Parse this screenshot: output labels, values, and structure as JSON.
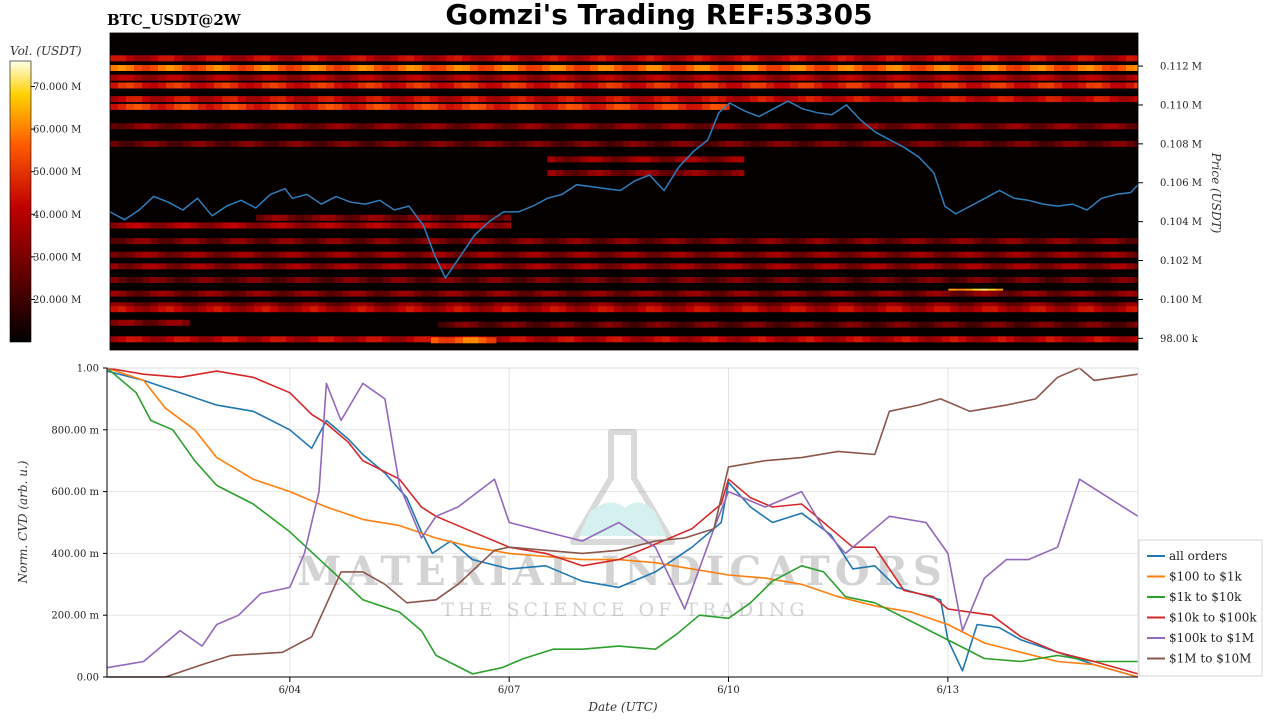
{
  "header": {
    "title": "Gomzi's Trading REF:53305",
    "pair": "BTC_USDT@2W"
  },
  "watermark": {
    "brand": "MATERIAL INDICATORS",
    "tagline": "THE SCIENCE OF TRADING"
  },
  "chart_data": [
    {
      "type": "heatmap",
      "subtype": "order-book liquidity heatmap with price line",
      "title": "",
      "colorbar": {
        "label": "Vol. (USDT)",
        "ticks": [
          "70.000 M",
          "60.000 M",
          "50.000 M",
          "40.000 M",
          "30.000 M",
          "20.000 M"
        ],
        "tick_values": [
          70,
          60,
          50,
          40,
          30,
          20
        ],
        "range": [
          10,
          76
        ],
        "unit": "M USDT",
        "colors": [
          "#000000",
          "#5a0000",
          "#c00000",
          "#ff5a00",
          "#ffd000",
          "#ffffe8"
        ]
      },
      "ylabel": "Price (USDT)",
      "yticks": [
        "0.112 M",
        "0.110 M",
        "0.108 M",
        "0.106 M",
        "0.104 M",
        "0.102 M",
        "0.100 M",
        "98.00 k"
      ],
      "ytick_values": [
        112000,
        110000,
        108000,
        106000,
        104000,
        102000,
        100000,
        98000
      ],
      "ylim": [
        97400,
        113700
      ],
      "x_days": [
        1.5,
        15.6
      ],
      "price_series_color": "#2f7ebc",
      "price": {
        "x": [
          1.5,
          1.7,
          1.9,
          2.1,
          2.3,
          2.5,
          2.7,
          2.9,
          3.1,
          3.3,
          3.5,
          3.7,
          3.9,
          4.0,
          4.2,
          4.4,
          4.6,
          4.8,
          5.0,
          5.2,
          5.4,
          5.6,
          5.8,
          5.95,
          6.1,
          6.3,
          6.5,
          6.7,
          6.9,
          7.1,
          7.3,
          7.5,
          7.7,
          7.9,
          8.1,
          8.3,
          8.5,
          8.7,
          8.9,
          9.1,
          9.3,
          9.5,
          9.7,
          9.85,
          10.0,
          10.2,
          10.4,
          10.6,
          10.8,
          11.0,
          11.2,
          11.4,
          11.6,
          11.8,
          12.0,
          12.2,
          12.4,
          12.6,
          12.8,
          12.95,
          13.1,
          13.3,
          13.5,
          13.7,
          13.9,
          14.1,
          14.3,
          14.5,
          14.7,
          14.9,
          15.1,
          15.3,
          15.5,
          15.6
        ],
        "y": [
          104500,
          104100,
          104600,
          105300,
          105000,
          104600,
          105200,
          104300,
          104800,
          105100,
          104700,
          105400,
          105700,
          105200,
          105400,
          104900,
          105300,
          105000,
          104900,
          105100,
          104600,
          104800,
          103800,
          102300,
          101100,
          102200,
          103300,
          104000,
          104500,
          104500,
          104800,
          105200,
          105400,
          105900,
          105800,
          105700,
          105600,
          106100,
          106400,
          105600,
          106800,
          107600,
          108200,
          109600,
          110100,
          109700,
          109400,
          109800,
          110200,
          109800,
          109600,
          109500,
          110000,
          109200,
          108600,
          108200,
          107800,
          107300,
          106500,
          104800,
          104400,
          104800,
          105200,
          105600,
          105200,
          105100,
          104900,
          104800,
          104900,
          104600,
          105200,
          105400,
          105500,
          105900
        ]
      },
      "liquidity_bands": [
        {
          "price": 112400,
          "intensity": 0.45,
          "x": [
            1.5,
            15.6
          ]
        },
        {
          "price": 111900,
          "intensity": 0.7,
          "x": [
            1.5,
            15.6
          ]
        },
        {
          "price": 111400,
          "intensity": 0.4,
          "x": [
            1.5,
            15.6
          ]
        },
        {
          "price": 111000,
          "intensity": 0.55,
          "x": [
            1.5,
            15.6
          ]
        },
        {
          "price": 110300,
          "intensity": 0.48,
          "x": [
            1.5,
            15.6
          ]
        },
        {
          "price": 109900,
          "intensity": 0.6,
          "x": [
            1.5,
            10.0
          ]
        },
        {
          "price": 108900,
          "intensity": 0.3,
          "x": [
            1.5,
            15.6
          ]
        },
        {
          "price": 108000,
          "intensity": 0.25,
          "x": [
            1.5,
            15.6
          ]
        },
        {
          "price": 107200,
          "intensity": 0.35,
          "x": [
            7.5,
            10.2
          ]
        },
        {
          "price": 106500,
          "intensity": 0.3,
          "x": [
            7.5,
            10.2
          ]
        },
        {
          "price": 104200,
          "intensity": 0.3,
          "x": [
            3.5,
            7.0
          ]
        },
        {
          "price": 103800,
          "intensity": 0.4,
          "x": [
            1.5,
            7.0
          ]
        },
        {
          "price": 103000,
          "intensity": 0.28,
          "x": [
            1.5,
            15.6
          ]
        },
        {
          "price": 102300,
          "intensity": 0.33,
          "x": [
            1.5,
            15.6
          ]
        },
        {
          "price": 101700,
          "intensity": 0.35,
          "x": [
            1.5,
            15.6
          ]
        },
        {
          "price": 101000,
          "intensity": 0.25,
          "x": [
            1.5,
            15.6
          ]
        },
        {
          "price": 100400,
          "intensity": 0.85,
          "x": [
            13.0,
            13.75
          ]
        },
        {
          "price": 100300,
          "intensity": 0.3,
          "x": [
            1.5,
            15.6
          ]
        },
        {
          "price": 99700,
          "intensity": 0.3,
          "x": [
            1.5,
            15.6
          ]
        },
        {
          "price": 99500,
          "intensity": 0.45,
          "x": [
            1.5,
            15.6
          ]
        },
        {
          "price": 98800,
          "intensity": 0.3,
          "x": [
            1.5,
            2.6
          ]
        },
        {
          "price": 98700,
          "intensity": 0.25,
          "x": [
            6.0,
            15.6
          ]
        },
        {
          "price": 97950,
          "intensity": 0.45,
          "x": [
            1.5,
            15.6
          ]
        },
        {
          "price": 97900,
          "intensity": 0.7,
          "x": [
            5.9,
            6.8
          ]
        }
      ]
    },
    {
      "type": "line",
      "title": "",
      "xlabel": "Date (UTC)",
      "ylabel": "Norm. CVD (arb. u.)",
      "xticks": [
        "6/04",
        "6/07",
        "6/10",
        "6/13"
      ],
      "xtick_values": [
        4,
        7,
        10,
        13
      ],
      "xlim": [
        1.5,
        15.6
      ],
      "yticks": [
        "0.00",
        "200.00 m",
        "400.00 m",
        "600.00 m",
        "800.00 m",
        "1.00"
      ],
      "ytick_values": [
        0,
        0.2,
        0.4,
        0.6,
        0.8,
        1.0
      ],
      "ylim": [
        0,
        1.0
      ],
      "grid": true,
      "legend_position": "bottom-right",
      "series": [
        {
          "name": "all orders",
          "color": "#1f77b4",
          "x": [
            1.5,
            2.0,
            2.5,
            3.0,
            3.5,
            4.0,
            4.3,
            4.5,
            4.8,
            5.0,
            5.3,
            5.6,
            5.8,
            5.95,
            6.2,
            6.5,
            7.0,
            7.5,
            8.0,
            8.5,
            9.0,
            9.5,
            9.9,
            10.0,
            10.3,
            10.6,
            11.0,
            11.4,
            11.7,
            12.0,
            12.3,
            12.6,
            12.9,
            13.0,
            13.2,
            13.4,
            13.7,
            14.0,
            14.5,
            15.0,
            15.6
          ],
          "y": [
            0.99,
            0.96,
            0.92,
            0.88,
            0.86,
            0.8,
            0.74,
            0.83,
            0.77,
            0.72,
            0.66,
            0.58,
            0.47,
            0.4,
            0.44,
            0.38,
            0.35,
            0.36,
            0.31,
            0.29,
            0.34,
            0.42,
            0.5,
            0.63,
            0.55,
            0.5,
            0.53,
            0.46,
            0.35,
            0.36,
            0.29,
            0.27,
            0.25,
            0.12,
            0.02,
            0.17,
            0.16,
            0.12,
            0.08,
            0.04,
            0.0
          ]
        },
        {
          "name": "$100 to $1k",
          "color": "#ff7f0e",
          "x": [
            1.5,
            2.0,
            2.3,
            2.7,
            3.0,
            3.5,
            4.0,
            4.5,
            5.0,
            5.5,
            6.0,
            6.5,
            7.0,
            7.5,
            8.0,
            8.5,
            9.0,
            9.5,
            10.0,
            10.5,
            11.0,
            11.5,
            12.0,
            12.5,
            13.0,
            13.5,
            14.0,
            14.5,
            15.0,
            15.6
          ],
          "y": [
            1.0,
            0.96,
            0.87,
            0.8,
            0.71,
            0.64,
            0.6,
            0.55,
            0.51,
            0.49,
            0.45,
            0.42,
            0.4,
            0.39,
            0.38,
            0.38,
            0.37,
            0.35,
            0.33,
            0.32,
            0.3,
            0.26,
            0.23,
            0.21,
            0.17,
            0.11,
            0.08,
            0.05,
            0.04,
            0.0
          ]
        },
        {
          "name": "$1k to $10k",
          "color": "#2ca02c",
          "x": [
            1.5,
            1.9,
            2.1,
            2.4,
            2.7,
            3.0,
            3.5,
            4.0,
            4.5,
            5.0,
            5.5,
            5.8,
            6.0,
            6.5,
            6.9,
            7.2,
            7.6,
            8.0,
            8.5,
            9.0,
            9.3,
            9.6,
            10.0,
            10.3,
            10.6,
            11.0,
            11.3,
            11.6,
            12.0,
            12.5,
            13.0,
            13.5,
            14.0,
            14.5,
            15.0,
            15.6
          ],
          "y": [
            1.0,
            0.92,
            0.83,
            0.8,
            0.7,
            0.62,
            0.56,
            0.47,
            0.36,
            0.25,
            0.21,
            0.15,
            0.07,
            0.01,
            0.03,
            0.06,
            0.09,
            0.09,
            0.1,
            0.09,
            0.14,
            0.2,
            0.19,
            0.24,
            0.31,
            0.36,
            0.34,
            0.26,
            0.24,
            0.18,
            0.12,
            0.06,
            0.05,
            0.07,
            0.05,
            0.05
          ]
        },
        {
          "name": "$10k to $100k",
          "color": "#d62728",
          "x": [
            1.5,
            2.0,
            2.5,
            3.0,
            3.5,
            4.0,
            4.3,
            4.5,
            4.8,
            5.0,
            5.5,
            5.8,
            6.0,
            6.5,
            7.0,
            7.5,
            8.0,
            8.5,
            9.0,
            9.5,
            9.9,
            10.0,
            10.3,
            10.6,
            11.0,
            11.4,
            11.7,
            12.0,
            12.4,
            12.8,
            13.0,
            13.3,
            13.6,
            14.0,
            14.5,
            15.0,
            15.6
          ],
          "y": [
            1.0,
            0.98,
            0.97,
            0.99,
            0.97,
            0.92,
            0.85,
            0.82,
            0.76,
            0.7,
            0.64,
            0.55,
            0.52,
            0.47,
            0.42,
            0.4,
            0.36,
            0.38,
            0.43,
            0.48,
            0.56,
            0.64,
            0.58,
            0.55,
            0.56,
            0.48,
            0.42,
            0.42,
            0.28,
            0.26,
            0.22,
            0.21,
            0.2,
            0.13,
            0.08,
            0.05,
            0.01
          ]
        },
        {
          "name": "$100k to $1M",
          "color": "#9467bd",
          "x": [
            1.5,
            2.0,
            2.5,
            2.8,
            3.0,
            3.3,
            3.6,
            4.0,
            4.2,
            4.4,
            4.5,
            4.7,
            5.0,
            5.3,
            5.5,
            5.8,
            6.0,
            6.3,
            6.8,
            7.0,
            7.5,
            8.0,
            8.5,
            9.0,
            9.4,
            9.8,
            10.0,
            10.5,
            11.0,
            11.3,
            11.6,
            12.0,
            12.2,
            12.7,
            13.0,
            13.2,
            13.5,
            13.8,
            14.1,
            14.5,
            14.8,
            15.2,
            15.6
          ],
          "y": [
            0.03,
            0.05,
            0.15,
            0.1,
            0.17,
            0.2,
            0.27,
            0.29,
            0.4,
            0.6,
            0.95,
            0.83,
            0.95,
            0.9,
            0.62,
            0.45,
            0.52,
            0.55,
            0.64,
            0.5,
            0.47,
            0.44,
            0.5,
            0.42,
            0.22,
            0.48,
            0.6,
            0.55,
            0.6,
            0.48,
            0.4,
            0.48,
            0.52,
            0.5,
            0.4,
            0.15,
            0.32,
            0.38,
            0.38,
            0.42,
            0.64,
            0.58,
            0.52
          ]
        },
        {
          "name": "$1M to $10M",
          "color": "#8c564b",
          "x": [
            1.5,
            2.3,
            2.8,
            3.2,
            3.9,
            4.3,
            4.7,
            5.0,
            5.3,
            5.6,
            6.0,
            6.3,
            6.8,
            7.0,
            7.5,
            8.0,
            8.5,
            9.0,
            9.4,
            9.8,
            10.0,
            10.5,
            11.0,
            11.5,
            12.0,
            12.2,
            12.6,
            12.9,
            13.3,
            13.8,
            14.2,
            14.5,
            14.8,
            15.0,
            15.3,
            15.6
          ],
          "y": [
            0.0,
            0.0,
            0.04,
            0.07,
            0.08,
            0.13,
            0.34,
            0.34,
            0.3,
            0.24,
            0.25,
            0.3,
            0.41,
            0.42,
            0.41,
            0.4,
            0.41,
            0.44,
            0.45,
            0.48,
            0.68,
            0.7,
            0.71,
            0.73,
            0.72,
            0.86,
            0.88,
            0.9,
            0.86,
            0.88,
            0.9,
            0.97,
            1.0,
            0.96,
            0.97,
            0.98
          ]
        }
      ]
    }
  ]
}
